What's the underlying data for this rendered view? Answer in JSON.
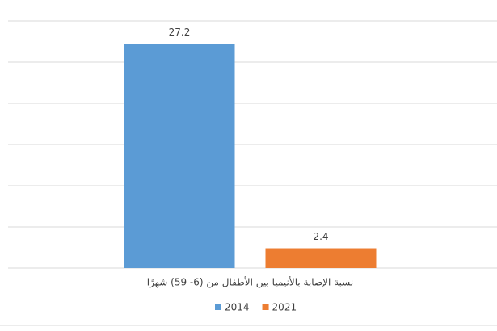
{
  "chart_data": {
    "type": "bar",
    "categories": [
      "نسبة الإصابة بالأنيميا بين الأطفال من (6- 59) شهرًا"
    ],
    "series": [
      {
        "name": "2014",
        "color": "#5b9bd5",
        "values": [
          27.2
        ]
      },
      {
        "name": "2021",
        "color": "#ed7d31",
        "values": [
          2.4
        ]
      }
    ],
    "ylim": [
      0,
      30
    ],
    "yticks": [
      0,
      5,
      10,
      15,
      20,
      25,
      30
    ],
    "grid": true,
    "legend": "bottom"
  }
}
